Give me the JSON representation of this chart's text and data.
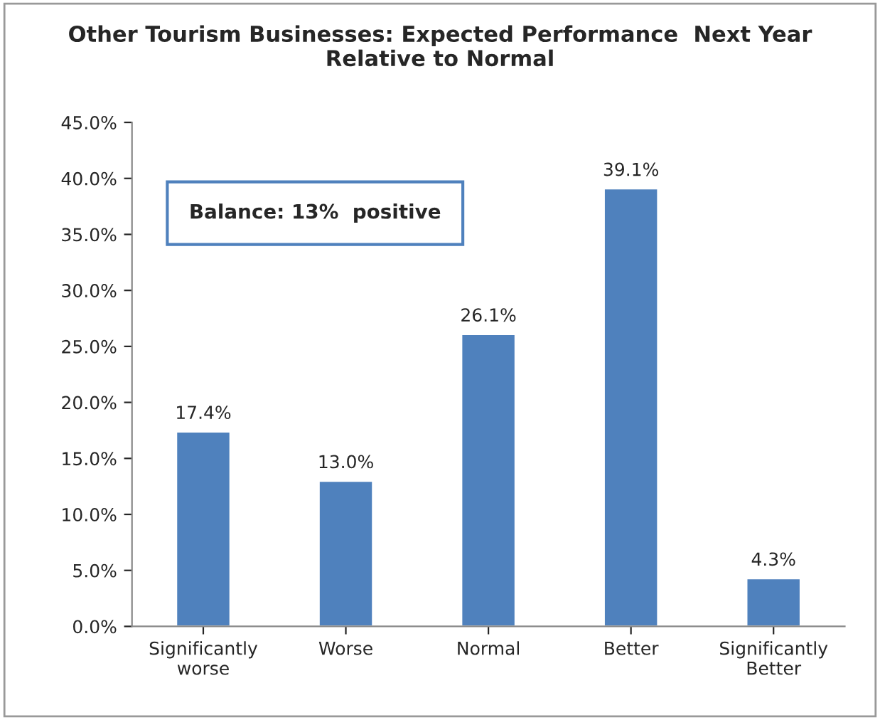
{
  "chart_data": {
    "type": "bar",
    "title": "Other Tourism Businesses: Expected Performance  Next Year\nRelative to Normal",
    "categories": [
      "Significantly\nworse",
      "Worse",
      "Normal",
      "Better",
      "Significantly\nBetter"
    ],
    "values": [
      17.4,
      13.0,
      26.1,
      39.1,
      4.3
    ],
    "value_labels": [
      "17.4%",
      "13.0%",
      "26.1%",
      "39.1%",
      "4.3%"
    ],
    "color": "#4f81bd",
    "ylim": [
      0,
      45
    ],
    "yticks": [
      {
        "value": 0,
        "label": "0.0%"
      },
      {
        "value": 5,
        "label": "5.0%"
      },
      {
        "value": 10,
        "label": "10.0%"
      },
      {
        "value": 15,
        "label": "15.0%"
      },
      {
        "value": 20,
        "label": "20.0%"
      },
      {
        "value": 25,
        "label": "25.0%"
      },
      {
        "value": 30,
        "label": "30.0%"
      },
      {
        "value": 35,
        "label": "35.0%"
      },
      {
        "value": 40,
        "label": "40.0%"
      },
      {
        "value": 45,
        "label": "45.0%"
      }
    ],
    "annotations": [
      "Balance: 13%  positive"
    ],
    "grid": false,
    "legend": false
  }
}
